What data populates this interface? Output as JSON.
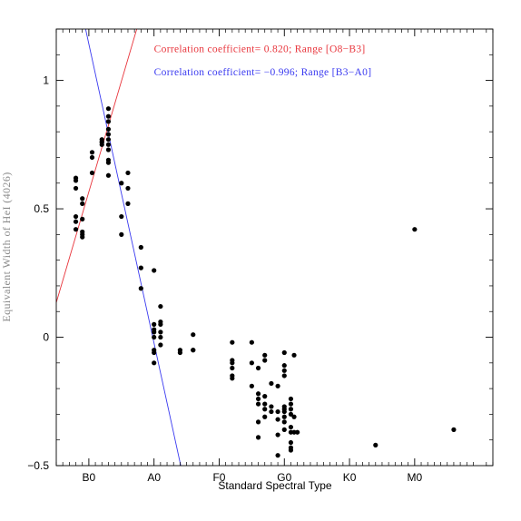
{
  "chart_data": {
    "type": "scatter",
    "xlabel": "Standard Spectral Type",
    "ylabel": "Equivalent Width of HeI (4026)",
    "xlim": [
      -10,
      124
    ],
    "ylim": [
      -0.5,
      1.2
    ],
    "x_ticks": [
      {
        "value": 0,
        "label": "B0"
      },
      {
        "value": 20,
        "label": "A0"
      },
      {
        "value": 40,
        "label": "F0"
      },
      {
        "value": 60,
        "label": "G0"
      },
      {
        "value": 80,
        "label": "K0"
      },
      {
        "value": 100,
        "label": "M0"
      }
    ],
    "y_ticks": [
      {
        "value": -0.5,
        "label": "−0.5"
      },
      {
        "value": 0,
        "label": "0"
      },
      {
        "value": 0.5,
        "label": "0.5"
      },
      {
        "value": 1,
        "label": "1"
      }
    ],
    "grid": false,
    "colors": {
      "points": "#000000",
      "fit_o8_b3": "#e8343b",
      "fit_b3_a0": "#3a3af0",
      "axes": "#000000"
    },
    "annotations": [
      {
        "text": "Correlation coefficient= 0.820; Range [O8−B3]",
        "color": "#e8343b",
        "x": 20,
        "y": 1.11
      },
      {
        "text": "Correlation coefficient= −0.996; Range [B3−A0]",
        "color": "#3a3af0",
        "x": 20,
        "y": 1.02
      }
    ],
    "fit_lines": [
      {
        "range": "O8-B3",
        "color": "#e8343b",
        "x": [
          -10,
          14.7
        ],
        "y": [
          0.135,
          1.2
        ]
      },
      {
        "range": "B3-A0",
        "color": "#3a3af0",
        "x": [
          -1,
          28.2
        ],
        "y": [
          1.2,
          -0.5
        ]
      }
    ],
    "series": [
      {
        "points": [
          [
            -4,
            0.62
          ],
          [
            -4,
            0.61
          ],
          [
            -4,
            0.58
          ],
          [
            -4,
            0.47
          ],
          [
            -4,
            0.45
          ],
          [
            -4,
            0.42
          ],
          [
            -2,
            0.54
          ],
          [
            -2,
            0.52
          ],
          [
            -2,
            0.46
          ],
          [
            -2,
            0.41
          ],
          [
            -2,
            0.4
          ],
          [
            -2,
            0.39
          ],
          [
            1,
            0.72
          ],
          [
            1,
            0.7
          ],
          [
            1,
            0.64
          ],
          [
            4,
            0.77
          ],
          [
            4,
            0.76
          ],
          [
            4,
            0.76
          ],
          [
            4,
            0.75
          ],
          [
            6,
            0.89
          ],
          [
            6,
            0.86
          ],
          [
            6,
            0.84
          ],
          [
            6,
            0.81
          ],
          [
            6,
            0.79
          ],
          [
            6,
            0.77
          ],
          [
            6,
            0.75
          ],
          [
            6,
            0.73
          ],
          [
            6,
            0.69
          ],
          [
            6,
            0.68
          ],
          [
            6,
            0.63
          ],
          [
            10,
            0.6
          ],
          [
            10,
            0.47
          ],
          [
            10,
            0.4
          ],
          [
            12,
            0.64
          ],
          [
            12,
            0.58
          ],
          [
            12,
            0.52
          ],
          [
            16,
            0.35
          ],
          [
            16,
            0.27
          ],
          [
            16,
            0.19
          ],
          [
            20,
            0.26
          ],
          [
            20,
            0.05
          ],
          [
            20,
            0.03
          ],
          [
            20,
            0.02
          ],
          [
            20,
            0.0
          ],
          [
            20,
            -0.05
          ],
          [
            20,
            -0.06
          ],
          [
            20,
            -0.1
          ],
          [
            22,
            0.12
          ],
          [
            22,
            0.06
          ],
          [
            22,
            0.05
          ],
          [
            22,
            0.02
          ],
          [
            22,
            0.0
          ],
          [
            22,
            -0.03
          ],
          [
            28,
            -0.05
          ],
          [
            28,
            -0.06
          ],
          [
            32,
            0.01
          ],
          [
            32,
            -0.05
          ],
          [
            32,
            -0.05
          ],
          [
            44,
            -0.02
          ],
          [
            44,
            -0.09
          ],
          [
            44,
            -0.1
          ],
          [
            44,
            -0.12
          ],
          [
            44,
            -0.15
          ],
          [
            44,
            -0.16
          ],
          [
            50,
            -0.02
          ],
          [
            50,
            -0.1
          ],
          [
            50,
            -0.19
          ],
          [
            52,
            -0.12
          ],
          [
            52,
            -0.22
          ],
          [
            52,
            -0.24
          ],
          [
            52,
            -0.26
          ],
          [
            52,
            -0.33
          ],
          [
            52,
            -0.39
          ],
          [
            54,
            -0.07
          ],
          [
            54,
            -0.09
          ],
          [
            54,
            -0.23
          ],
          [
            54,
            -0.26
          ],
          [
            54,
            -0.28
          ],
          [
            54,
            -0.31
          ],
          [
            56,
            -0.18
          ],
          [
            56,
            -0.27
          ],
          [
            56,
            -0.29
          ],
          [
            58,
            -0.19
          ],
          [
            58,
            -0.29
          ],
          [
            58,
            -0.32
          ],
          [
            58,
            -0.38
          ],
          [
            58,
            -0.46
          ],
          [
            60,
            -0.06
          ],
          [
            60,
            -0.11
          ],
          [
            60,
            -0.13
          ],
          [
            60,
            -0.15
          ],
          [
            60,
            -0.27
          ],
          [
            60,
            -0.28
          ],
          [
            60,
            -0.29
          ],
          [
            60,
            -0.31
          ],
          [
            60,
            -0.33
          ],
          [
            60,
            -0.36
          ],
          [
            62,
            -0.24
          ],
          [
            62,
            -0.26
          ],
          [
            62,
            -0.28
          ],
          [
            62,
            -0.3
          ],
          [
            62,
            -0.35
          ],
          [
            62,
            -0.37
          ],
          [
            62,
            -0.41
          ],
          [
            62,
            -0.43
          ],
          [
            62,
            -0.44
          ],
          [
            63,
            -0.07
          ],
          [
            63,
            -0.31
          ],
          [
            63,
            -0.37
          ],
          [
            64,
            -0.37
          ],
          [
            88,
            -0.42
          ],
          [
            100,
            0.42
          ],
          [
            112,
            -0.36
          ]
        ]
      }
    ]
  }
}
